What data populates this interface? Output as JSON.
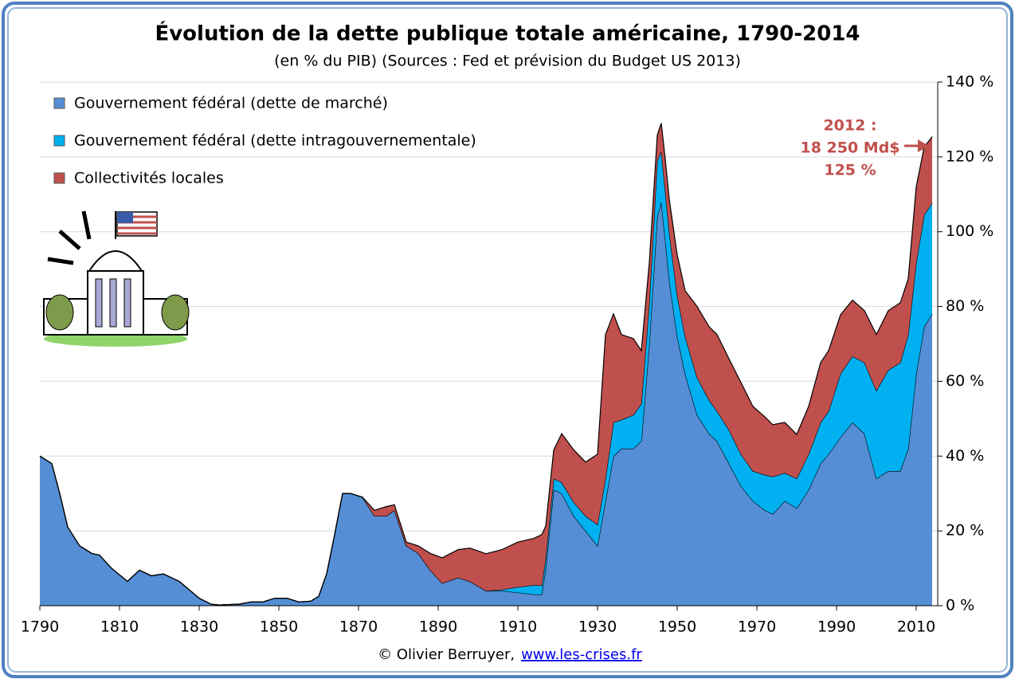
{
  "chart_data": {
    "type": "stacked_area",
    "title": "Évolution de la dette publique totale américaine, 1790-2014",
    "subtitle": "(en % du PIB) (Sources : Fed et prévision du Budget US 2013)",
    "x": [
      1790,
      1793,
      1795,
      1797,
      1800,
      1803,
      1805,
      1808,
      1812,
      1815,
      1818,
      1821,
      1825,
      1830,
      1833,
      1835,
      1840,
      1843,
      1846,
      1849,
      1852,
      1855,
      1858,
      1860,
      1862,
      1864,
      1866,
      1868,
      1871,
      1874,
      1877,
      1879,
      1882,
      1885,
      1888,
      1891,
      1895,
      1898,
      1902,
      1906,
      1910,
      1914,
      1916,
      1917,
      1919,
      1921,
      1924,
      1927,
      1930,
      1932,
      1934,
      1936,
      1939,
      1941,
      1943,
      1945,
      1946,
      1947,
      1948,
      1950,
      1952,
      1955,
      1958,
      1960,
      1963,
      1966,
      1969,
      1972,
      1974,
      1977,
      1980,
      1983,
      1986,
      1988,
      1991,
      1994,
      1997,
      2000,
      2003,
      2006,
      2008,
      2010,
      2012,
      2014
    ],
    "series": [
      {
        "name": "Gouvernement fédéral (dette de marché)",
        "color": "#558ed5",
        "values": [
          40,
          38,
          30,
          21,
          16,
          14,
          13.5,
          10,
          6.5,
          9.5,
          8,
          8.5,
          6.5,
          2,
          0.4,
          0.2,
          0.4,
          1,
          1,
          2,
          2,
          1,
          1.2,
          2.5,
          8.5,
          19,
          30,
          30,
          29,
          24,
          24,
          25.5,
          16,
          14,
          9.5,
          6,
          7.5,
          6.5,
          4,
          4,
          3.5,
          3,
          3,
          10,
          31,
          30,
          24,
          20,
          16,
          28,
          40,
          42,
          42,
          44,
          70,
          104,
          108,
          98,
          87,
          72,
          62,
          51,
          46,
          44,
          38,
          32,
          28,
          25.5,
          24.5,
          28,
          26,
          31,
          38,
          40.5,
          45,
          49,
          46,
          34,
          36,
          36,
          42,
          62,
          74.6,
          78
        ]
      },
      {
        "name": "Gouvernement fédéral (dette intragouvernementale)",
        "color": "#00b0f0",
        "values": [
          0,
          0,
          0,
          0,
          0,
          0,
          0,
          0,
          0,
          0,
          0,
          0,
          0,
          0,
          0,
          0,
          0,
          0,
          0,
          0,
          0,
          0,
          0,
          0,
          0,
          0,
          0,
          0,
          0,
          0,
          0,
          0,
          0,
          0,
          0,
          0,
          0,
          0,
          0,
          0.3,
          1.5,
          2.5,
          2.4,
          2.8,
          3,
          3,
          3.7,
          4,
          5.7,
          6,
          9,
          7.7,
          9,
          10,
          11,
          15,
          13.5,
          13,
          13,
          11,
          10,
          10,
          9,
          8,
          9,
          8.5,
          8,
          9.5,
          10,
          7.5,
          8,
          9.5,
          11,
          11.5,
          17,
          17.7,
          19,
          23.5,
          27,
          29,
          30.5,
          29.7,
          29.9,
          29.7
        ]
      },
      {
        "name": "Collectivités locales",
        "color": "#c0504d",
        "values": [
          0,
          0,
          0,
          0,
          0,
          0,
          0,
          0,
          0,
          0,
          0,
          0,
          0,
          0,
          0,
          0,
          0,
          0,
          0,
          0,
          0,
          0,
          0,
          0,
          0,
          0,
          0,
          0,
          0,
          1.5,
          2.5,
          1.5,
          1,
          2,
          4.5,
          6.8,
          7.5,
          8.9,
          9.9,
          10.7,
          12,
          12.5,
          13.6,
          8.5,
          7.6,
          13,
          14,
          14.4,
          18.8,
          38.5,
          29,
          22.8,
          20.4,
          14.2,
          10.7,
          6.8,
          7.5,
          8.4,
          8.7,
          10.8,
          12.2,
          19,
          19.6,
          20.5,
          19,
          19.2,
          17.3,
          15.5,
          13.9,
          13.5,
          11.8,
          12.8,
          16,
          16.2,
          15.8,
          15,
          13.9,
          15,
          15.9,
          16,
          14.9,
          20.3,
          18.1,
          17.7
        ]
      }
    ],
    "xlim": [
      1790,
      2015
    ],
    "xticks": [
      1790,
      1810,
      1830,
      1850,
      1870,
      1890,
      1910,
      1930,
      1950,
      1970,
      1990,
      2010
    ],
    "ylim": [
      0,
      140
    ],
    "yticks": [
      {
        "value": 0,
        "label": "0 %"
      },
      {
        "value": 20,
        "label": "20 %"
      },
      {
        "value": 40,
        "label": "40 %"
      },
      {
        "value": 60,
        "label": "60 %"
      },
      {
        "value": 80,
        "label": "80 %"
      },
      {
        "value": 100,
        "label": "100 %"
      },
      {
        "value": 120,
        "label": "120 %"
      },
      {
        "value": 140,
        "label": "140 %"
      }
    ],
    "grid": true,
    "legend": "top-left",
    "annotation": [
      "2012 :",
      "18 250 Md$",
      "125 %"
    ],
    "annotation_color": "#c0504d",
    "credit": "© Olivier Berruyer,",
    "link": "www.les-crises.fr"
  }
}
